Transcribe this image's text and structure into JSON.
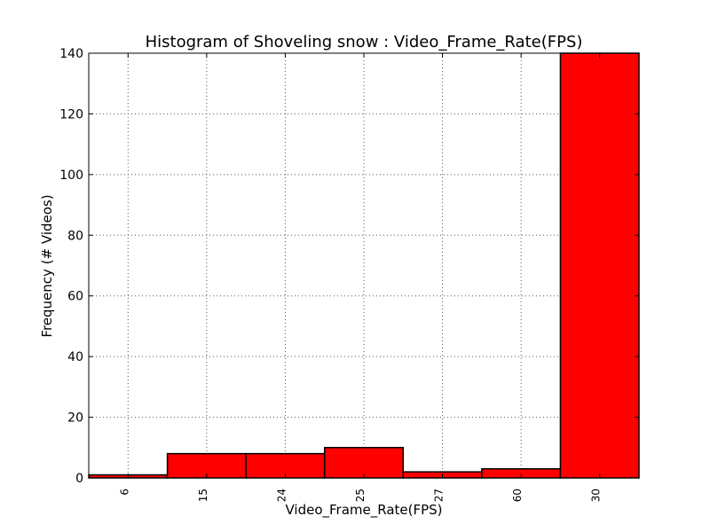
{
  "chart_data": {
    "type": "bar",
    "title": "Histogram of Shoveling snow : Video_Frame_Rate(FPS)",
    "xlabel": "Video_Frame_Rate(FPS)",
    "ylabel": "Frequency (# Videos)",
    "categories": [
      "6",
      "15",
      "24",
      "25",
      "27",
      "60",
      "30"
    ],
    "values": [
      1,
      8,
      8,
      10,
      2,
      3,
      140
    ],
    "ylim": [
      0,
      140
    ],
    "yticks": [
      0,
      20,
      40,
      60,
      80,
      100,
      120,
      140
    ],
    "grid": true,
    "bar_color": "#ff0000"
  }
}
